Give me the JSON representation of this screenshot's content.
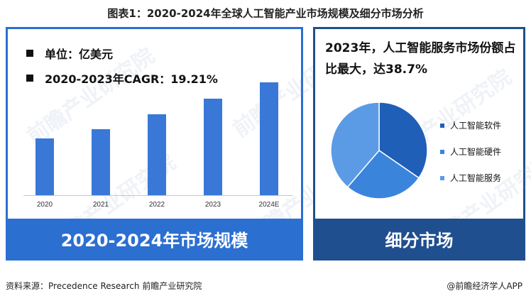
{
  "title": "图表1：2020-2024年全球人工智能产业市场规模及细分市场分析",
  "left_panel": {
    "unit_line": "单位：亿美元",
    "cagr_line": "2020-2023年CAGR：19.21%",
    "band_label": "2020-2024年市场规模"
  },
  "right_panel": {
    "headline": "2023年，人工智能服务市场份额占比最大，达38.7%",
    "band_label": "细分市场"
  },
  "watermark": "前瞻产业研究院",
  "source": "资料来源：Precedence Research 前瞻产业研究院",
  "brand": "@前瞻经济学人APP",
  "colors": {
    "bar": "#3a78d8",
    "left_accent": "#2b6fd1",
    "right_accent": "#1f4f8f"
  },
  "chart_data": [
    {
      "type": "bar",
      "categories": [
        "2020",
        "2021",
        "2022",
        "2023",
        "2024E"
      ],
      "values": [
        520,
        605,
        735,
        880,
        1030
      ],
      "ylim": [
        0,
        1100
      ],
      "title": "",
      "xlabel": "",
      "ylabel": ""
    },
    {
      "type": "pie",
      "labels": [
        "人工智能软件",
        "人工智能硬件",
        "人工智能服务"
      ],
      "values": [
        34.6,
        26.7,
        38.7
      ],
      "colors": [
        "#1f5fb8",
        "#3a84dc",
        "#5b9be6"
      ]
    }
  ]
}
